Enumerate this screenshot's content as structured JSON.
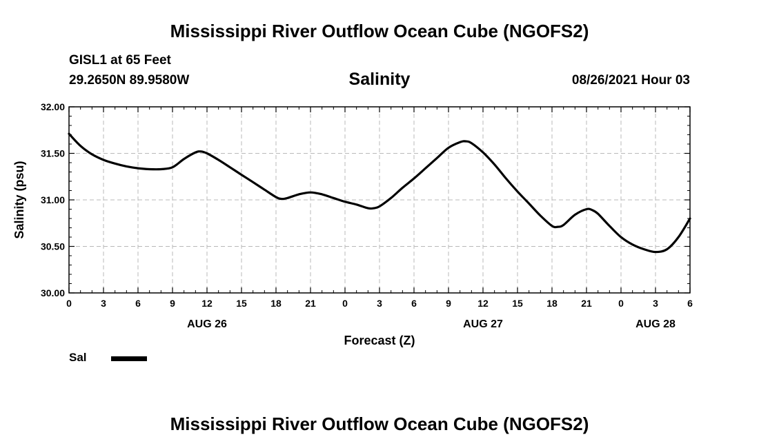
{
  "header": {
    "title": "Mississippi River Outflow Ocean Cube (NGOFS2)",
    "station": "GISL1 at 65 Feet",
    "coords": "29.2650N  89.9580W",
    "variable": "Salinity",
    "datetime": "08/26/2021 Hour 03"
  },
  "footer": {
    "title": "Mississippi River Outflow Ocean Cube (NGOFS2)"
  },
  "legend": {
    "label": "Sal",
    "color": "#000000"
  },
  "chart_data": {
    "type": "line",
    "ylabel": "Salinity (psu)",
    "xlabel": "Forecast (Z)",
    "ylim": [
      30.0,
      32.0
    ],
    "xlim": [
      0,
      54
    ],
    "grid": true,
    "yticks": [
      30.0,
      30.5,
      31.0,
      31.5,
      32.0
    ],
    "ytick_labels": [
      "30.00",
      "30.50",
      "31.00",
      "31.50",
      "32.00"
    ],
    "xticks": [
      0,
      3,
      6,
      9,
      12,
      15,
      18,
      21,
      24,
      27,
      30,
      33,
      36,
      39,
      42,
      45,
      48,
      51,
      54
    ],
    "xtick_labels": [
      "0",
      "3",
      "6",
      "9",
      "12",
      "15",
      "18",
      "21",
      "0",
      "3",
      "6",
      "9",
      "12",
      "15",
      "18",
      "21",
      "0",
      "3",
      "6"
    ],
    "date_labels": [
      {
        "x": 12,
        "label": "AUG 26"
      },
      {
        "x": 36,
        "label": "AUG 27"
      },
      {
        "x": 51,
        "label": "AUG 28"
      }
    ],
    "series": [
      {
        "name": "Sal",
        "x": [
          0,
          1,
          2,
          3,
          4,
          5,
          6,
          7,
          8,
          9,
          10,
          11,
          11.5,
          12,
          13,
          14,
          15,
          16,
          17,
          18,
          18.5,
          19,
          20,
          21,
          22,
          23,
          24,
          25,
          26,
          26.5,
          27,
          28,
          29,
          30,
          31,
          32,
          33,
          34,
          34.5,
          35,
          36,
          37,
          38,
          39,
          40,
          41,
          42,
          42.5,
          43,
          44,
          45,
          45.5,
          46,
          47,
          48,
          49,
          50,
          51,
          52,
          53,
          54
        ],
        "values": [
          31.71,
          31.58,
          31.49,
          31.43,
          31.39,
          31.36,
          31.34,
          31.33,
          31.33,
          31.35,
          31.44,
          31.51,
          31.52,
          31.5,
          31.43,
          31.35,
          31.27,
          31.19,
          31.11,
          31.03,
          31.01,
          31.02,
          31.06,
          31.08,
          31.06,
          31.02,
          30.98,
          30.95,
          30.91,
          30.91,
          30.93,
          31.02,
          31.13,
          31.23,
          31.34,
          31.45,
          31.56,
          31.62,
          31.63,
          31.61,
          31.51,
          31.38,
          31.23,
          31.09,
          30.96,
          30.83,
          30.72,
          30.71,
          30.73,
          30.84,
          30.9,
          30.89,
          30.85,
          30.72,
          30.6,
          30.52,
          30.47,
          30.44,
          30.47,
          30.6,
          30.8
        ]
      }
    ]
  }
}
